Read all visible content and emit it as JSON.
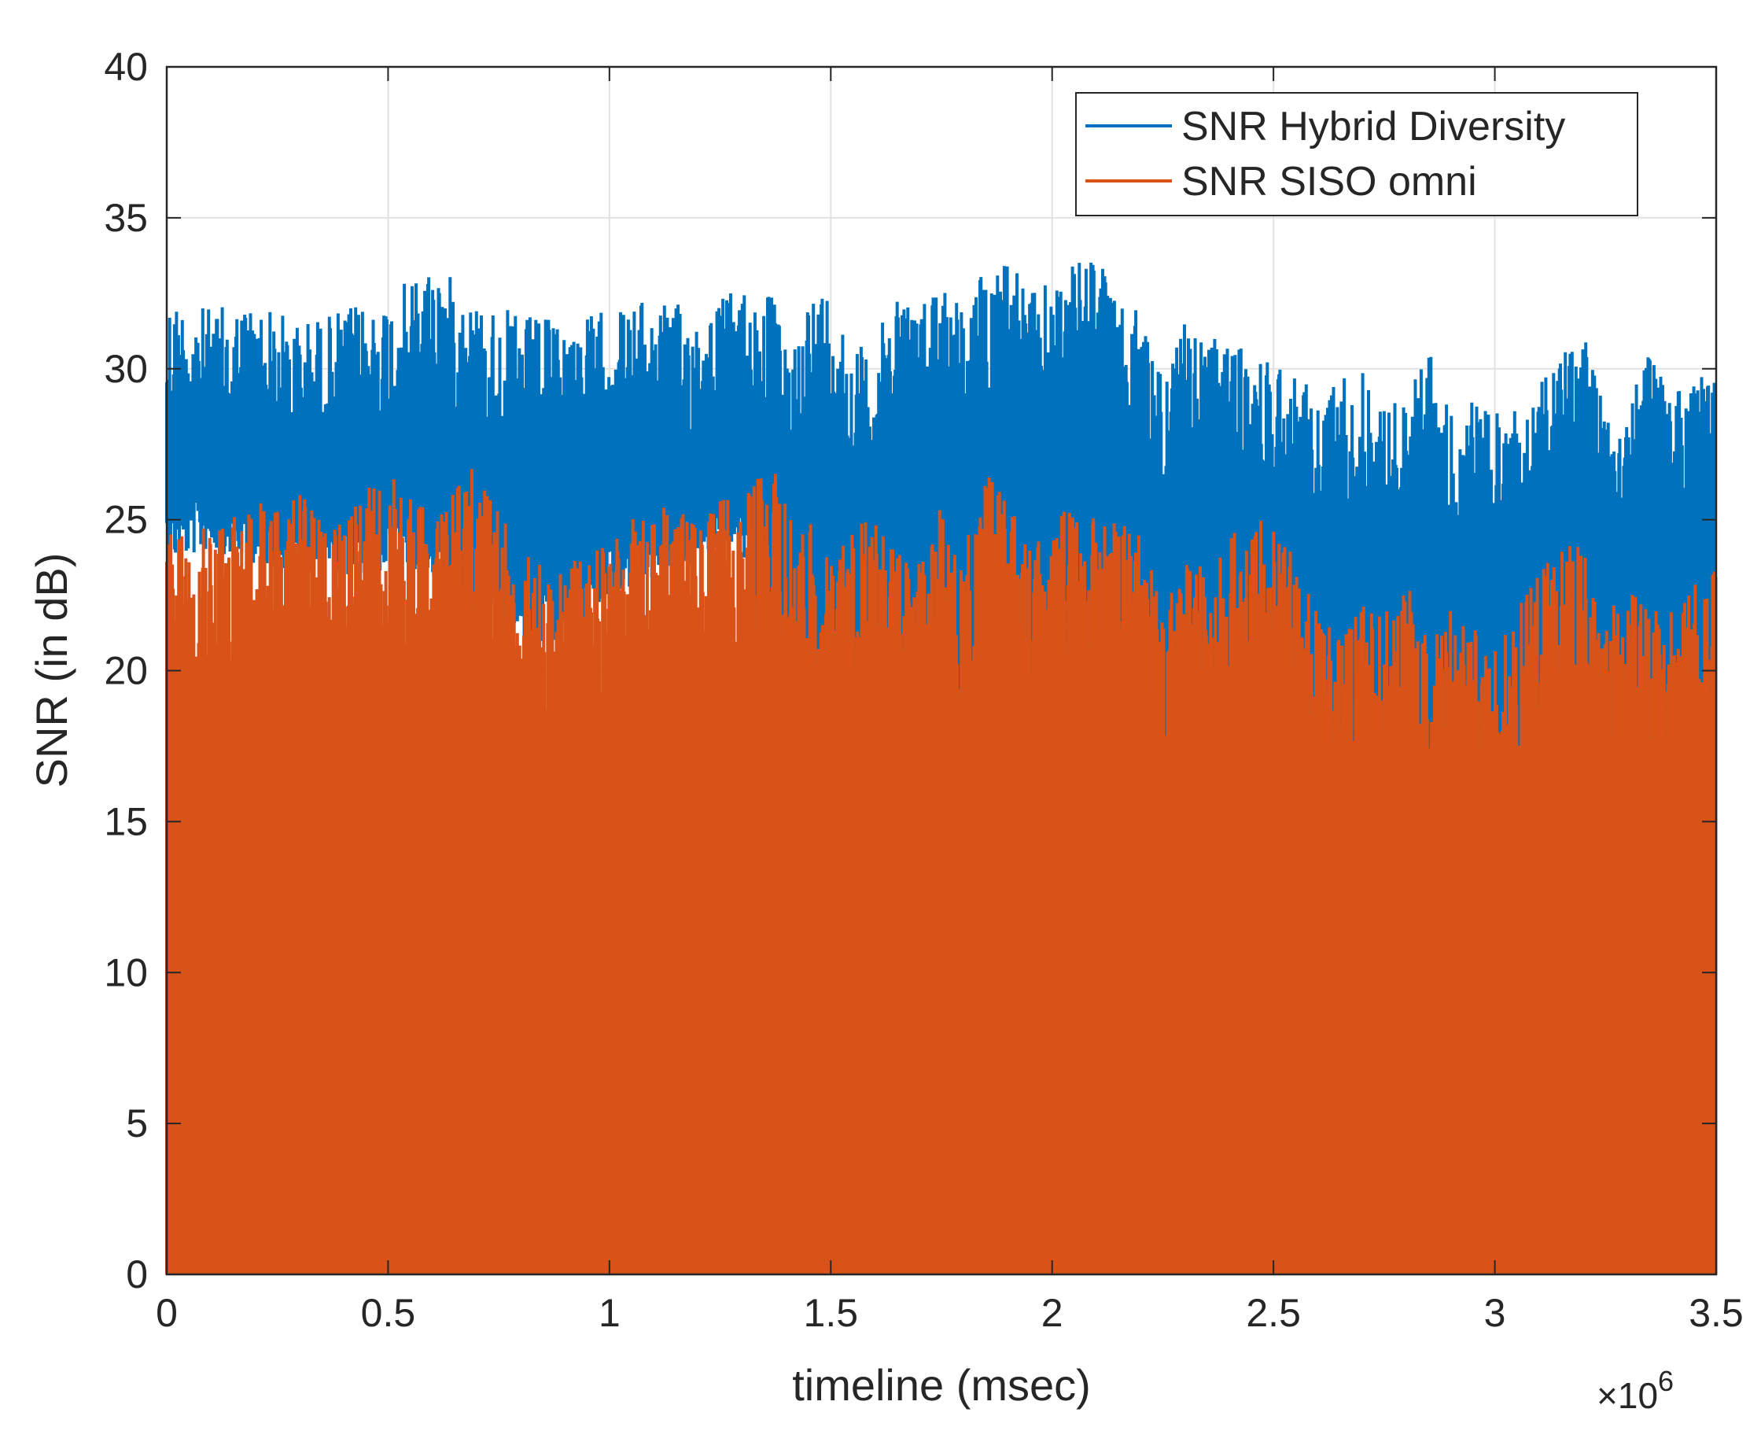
{
  "chart_data": {
    "type": "line",
    "title": "",
    "xlabel": "timeline (msec)",
    "ylabel": "SNR (in dB)",
    "x_exponent_base": "×10",
    "x_exponent_power": "6",
    "xlim": [
      0,
      3.5
    ],
    "ylim": [
      0,
      40
    ],
    "x_ticks": [
      0,
      0.5,
      1,
      1.5,
      2,
      2.5,
      3,
      3.5
    ],
    "x_tick_labels": [
      "0",
      "0.5",
      "1",
      "1.5",
      "2",
      "2.5",
      "3",
      "3.5"
    ],
    "y_ticks": [
      0,
      5,
      10,
      15,
      20,
      25,
      30,
      35,
      40
    ],
    "y_tick_labels": [
      "0",
      "5",
      "10",
      "15",
      "20",
      "25",
      "30",
      "35",
      "40"
    ],
    "grid": true,
    "legend_position": "top-right",
    "series": [
      {
        "name": "SNR Hybrid Diversity",
        "color": "#0072BD",
        "x": [
          0,
          0.1,
          0.2,
          0.3,
          0.4,
          0.5,
          0.6,
          0.7,
          0.8,
          0.9,
          1.0,
          1.1,
          1.2,
          1.3,
          1.37,
          1.4,
          1.45,
          1.5,
          1.55,
          1.6,
          1.65,
          1.7,
          1.75,
          1.8,
          1.85,
          1.9,
          1.95,
          2.0,
          2.05,
          2.1,
          2.15,
          2.2,
          2.25,
          2.3,
          2.35,
          2.4,
          2.45,
          2.5,
          2.55,
          2.6,
          2.65,
          2.7,
          2.75,
          2.8,
          2.85,
          2.9,
          2.95,
          3.0,
          3.05,
          3.1,
          3.15,
          3.2,
          3.25,
          3.3,
          3.35,
          3.4,
          3.45,
          3.5
        ],
        "upper": [
          32.5,
          32.0,
          32.3,
          31.6,
          32.0,
          32.4,
          33.6,
          32.3,
          31.8,
          31.6,
          32.0,
          32.3,
          32.0,
          32.8,
          32.5,
          30.5,
          32.5,
          32.8,
          30.8,
          30.8,
          33.0,
          32.0,
          33.5,
          32.0,
          33.5,
          34.0,
          32.5,
          33.0,
          33.5,
          34.0,
          32.0,
          32.0,
          30.0,
          31.5,
          31.0,
          31.0,
          30.5,
          30.5,
          30.0,
          29.0,
          30.0,
          30.0,
          29.0,
          29.0,
          31.0,
          28.5,
          29.0,
          28.5,
          29.0,
          29.5,
          30.5,
          31.5,
          29.5,
          29.0,
          30.5,
          29.5,
          30.0,
          30.0
        ],
        "lower": [
          25.5,
          26.0,
          25.5,
          25.2,
          25.0,
          25.3,
          25.0,
          23.0,
          23.0,
          22.5,
          24.5,
          25.0,
          25.5,
          26.0,
          19.5,
          17.0,
          19.0,
          15.5,
          16.0,
          16.5,
          15.0,
          16.0,
          17.5,
          15.0,
          17.0,
          20.5,
          17.0,
          16.0,
          16.5,
          17.0,
          18.0,
          17.0,
          16.0,
          17.5,
          16.5,
          18.0,
          17.0,
          18.0,
          17.5,
          16.5,
          16.5,
          17.5,
          16.0,
          16.5,
          14.5,
          14.5,
          16.5,
          15.0,
          14.5,
          14.5,
          16.0,
          17.5,
          15.0,
          14.0,
          17.5,
          16.5,
          18.0,
          18.5
        ]
      },
      {
        "name": "SNR SISO omni",
        "color": "#D95319",
        "x": [
          0,
          0.1,
          0.2,
          0.3,
          0.4,
          0.5,
          0.6,
          0.7,
          0.8,
          0.9,
          1.0,
          1.1,
          1.2,
          1.3,
          1.37,
          1.4,
          1.45,
          1.5,
          1.55,
          1.6,
          1.65,
          1.7,
          1.75,
          1.8,
          1.85,
          1.9,
          1.95,
          2.0,
          2.05,
          2.1,
          2.15,
          2.2,
          2.25,
          2.3,
          2.35,
          2.4,
          2.45,
          2.5,
          2.55,
          2.6,
          2.65,
          2.7,
          2.75,
          2.8,
          2.85,
          2.9,
          2.95,
          3.0,
          3.05,
          3.1,
          3.15,
          3.2,
          3.25,
          3.3,
          3.35,
          3.4,
          3.45,
          3.5
        ],
        "upper": [
          24.5,
          25.0,
          25.5,
          26.0,
          25.5,
          26.5,
          25.5,
          27.0,
          24.0,
          23.5,
          24.5,
          25.5,
          25.5,
          25.8,
          27.0,
          25.5,
          25.0,
          23.5,
          25.0,
          25.0,
          24.0,
          24.0,
          25.5,
          24.0,
          26.5,
          26.0,
          24.0,
          25.0,
          25.5,
          25.0,
          25.0,
          25.0,
          22.0,
          24.0,
          23.5,
          24.5,
          25.0,
          25.0,
          24.0,
          22.0,
          21.0,
          22.5,
          22.0,
          23.0,
          21.0,
          22.0,
          21.5,
          21.0,
          22.0,
          23.5,
          24.5,
          24.0,
          22.0,
          23.0,
          22.0,
          22.0,
          23.0,
          23.5
        ]
      }
    ]
  }
}
